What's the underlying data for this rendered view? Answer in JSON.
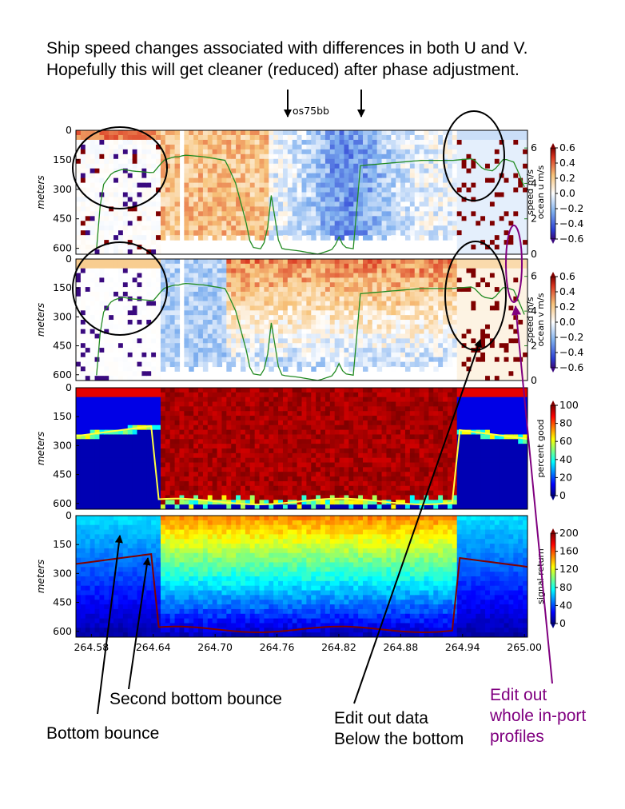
{
  "annotations": {
    "headline_line1": "Ship speed changes associated with differences in both U and V.",
    "headline_line2": "Hopefully this will get cleaner (reduced) after phase adjustment.",
    "second_bounce": "Second bottom bounce",
    "bottom_bounce": "Bottom bounce",
    "edit_out_line1": "Edit out data",
    "edit_out_line2": "Below the bottom",
    "inport_line1": "Edit out",
    "inport_line2": "whole in-port",
    "inport_line3": "profiles",
    "inport_color": "#800080"
  },
  "chart_data": [
    {
      "type": "heatmap",
      "title": "os75bb",
      "ylabel": "meters",
      "yticks": [
        "0",
        "150",
        "300",
        "450",
        "600"
      ],
      "ylim": [
        630,
        0
      ],
      "xlim": [
        264.565,
        265.003
      ],
      "colorbar_label": "ocean u m/s",
      "colorbar_ticks": [
        "0.6",
        "0.4",
        "0.2",
        "0.0",
        "−0.2",
        "−0.4",
        "−0.6"
      ],
      "colormap": "jet",
      "secondary_ylabel": "speed m/s",
      "secondary_yticks": [
        "0",
        "2",
        "4",
        "6"
      ],
      "secondary_color": "#228b22",
      "series": [
        {
          "name": "speed m/s",
          "x": [
            264.585,
            264.59,
            264.6,
            264.61,
            264.62,
            264.64,
            264.65,
            264.66,
            264.665,
            264.67,
            264.69,
            264.71,
            264.72,
            264.73,
            264.735,
            264.745,
            264.75,
            264.755,
            264.76,
            264.765,
            264.78,
            264.8,
            264.815,
            264.82,
            264.825,
            264.835,
            264.84,
            264.9,
            264.93,
            264.95,
            264.96,
            264.97,
            264.98,
            264.99,
            265.0
          ],
          "y": [
            0.3,
            3.8,
            4.6,
            4.8,
            4.7,
            4.6,
            5.3,
            5.5,
            5.5,
            5.6,
            5.5,
            5.3,
            4.0,
            1.8,
            0.4,
            0.3,
            1.0,
            3.6,
            1.0,
            0.3,
            0.2,
            0.0,
            0.3,
            1.0,
            0.4,
            0.3,
            5.0,
            5.3,
            5.3,
            5.4,
            4.8,
            4.7,
            5.4,
            5.2,
            3.8
          ]
        }
      ]
    },
    {
      "type": "heatmap",
      "ylabel": "meters",
      "yticks": [
        "0",
        "150",
        "300",
        "450",
        "600"
      ],
      "ylim": [
        630,
        0
      ],
      "xlim": [
        264.565,
        265.003
      ],
      "colorbar_label": "ocean v m/s",
      "colorbar_ticks": [
        "0.6",
        "0.4",
        "0.2",
        "0.0",
        "−0.2",
        "−0.4",
        "−0.6"
      ],
      "colormap": "jet",
      "secondary_ylabel": "speed m/s",
      "secondary_yticks": [
        "0",
        "2",
        "4",
        "6"
      ],
      "secondary_color": "#228b22"
    },
    {
      "type": "heatmap",
      "ylabel": "meters",
      "yticks": [
        "0",
        "150",
        "300",
        "450",
        "600"
      ],
      "ylim": [
        630,
        0
      ],
      "xlim": [
        264.565,
        265.003
      ],
      "colorbar_label": "percent good",
      "colorbar_ticks": [
        "100",
        "80",
        "60",
        "40",
        "20",
        "0"
      ],
      "colormap": "jet"
    },
    {
      "type": "heatmap",
      "ylabel": "meters",
      "yticks": [
        "0",
        "150",
        "300",
        "450",
        "600"
      ],
      "ylim": [
        630,
        0
      ],
      "xlim": [
        264.565,
        265.003
      ],
      "xticks": [
        "264.58",
        "264.64",
        "264.70",
        "264.76",
        "264.82",
        "264.88",
        "264.94",
        "265.00"
      ],
      "colorbar_label": "signal return",
      "colorbar_ticks": [
        "200",
        "160",
        "120",
        "80",
        "40",
        "0"
      ],
      "colormap": "jet"
    }
  ]
}
